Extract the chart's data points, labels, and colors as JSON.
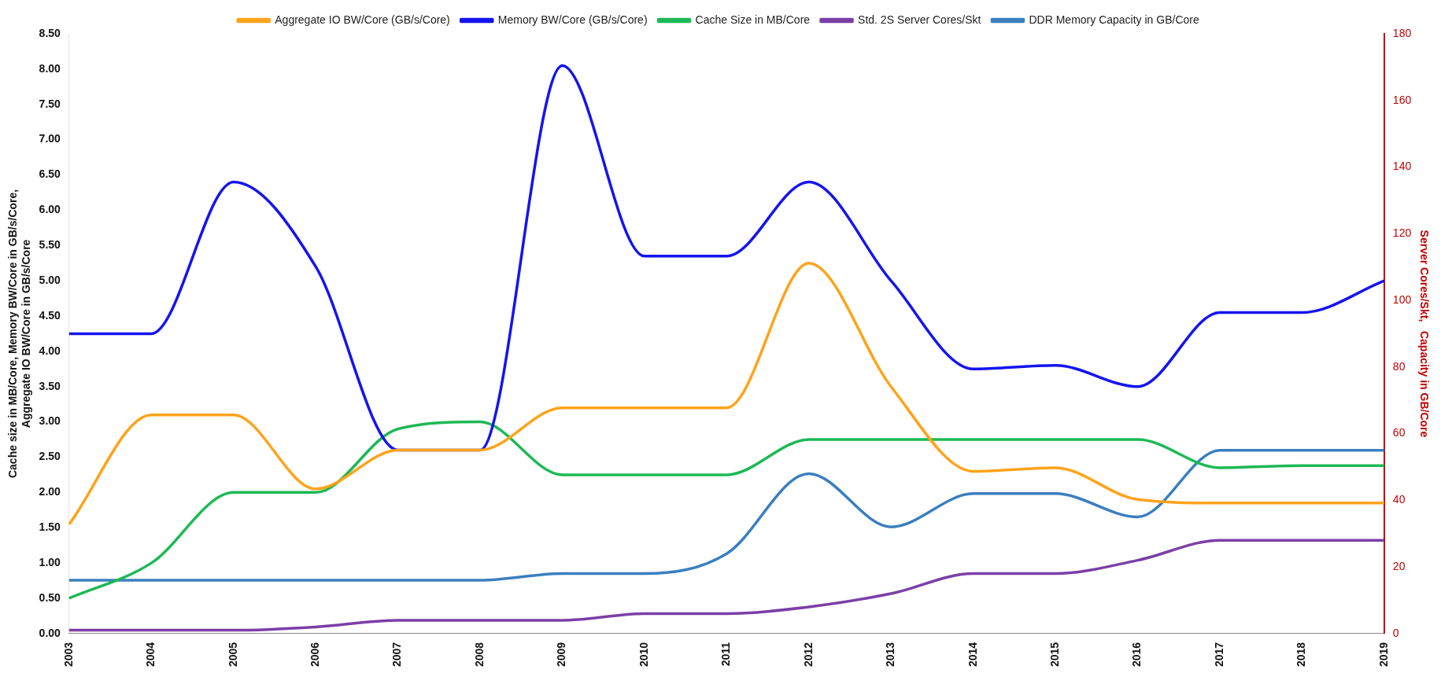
{
  "chart_data": {
    "type": "line",
    "categories": [
      "2003",
      "2004",
      "2005",
      "2006",
      "2007",
      "2008",
      "2009",
      "2010",
      "2011",
      "2012",
      "2013",
      "2014",
      "2015",
      "2016",
      "2017",
      "2018",
      "2019"
    ],
    "ylabel": "Cache size in MB/Core, Memory BW/Core in GB/s/Core,\nAggregate IO BW/Core in GB/s/Core",
    "y2label": "Server Cores/Skt,   Capacity in GB/Core",
    "ylim": [
      0,
      8.5
    ],
    "yticks": [
      {
        "value": 0,
        "label": "0.00"
      },
      {
        "value": 0.5,
        "label": "0.50"
      },
      {
        "value": 1,
        "label": "1.00"
      },
      {
        "value": 1.5,
        "label": "1.50"
      },
      {
        "value": 2,
        "label": "2.00"
      },
      {
        "value": 2.5,
        "label": "2.50"
      },
      {
        "value": 3,
        "label": "3.00"
      },
      {
        "value": 3.5,
        "label": "3.50"
      },
      {
        "value": 4,
        "label": "4.00"
      },
      {
        "value": 4.5,
        "label": "4.50"
      },
      {
        "value": 5,
        "label": "5.00"
      },
      {
        "value": 5.5,
        "label": "5.50"
      },
      {
        "value": 6,
        "label": "6.00"
      },
      {
        "value": 6.5,
        "label": "6.50"
      },
      {
        "value": 7,
        "label": "7.00"
      },
      {
        "value": 7.5,
        "label": "7.50"
      },
      {
        "value": 8,
        "label": "8.00"
      },
      {
        "value": 8.5,
        "label": "8.50"
      }
    ],
    "y2lim": [
      0,
      180
    ],
    "y2ticks": [
      0,
      20,
      40,
      60,
      80,
      100,
      120,
      140,
      160,
      180
    ],
    "grid": false,
    "legend": "top",
    "marker": "none",
    "line_style": "solid",
    "series": [
      {
        "name": "Aggregate IO BW/Core (GB/s/Core)",
        "color": "#ffa31a",
        "values": [
          1.55,
          3.1,
          3.1,
          2.05,
          2.6,
          2.6,
          3.2,
          3.2,
          3.2,
          5.25,
          3.5,
          2.3,
          2.35,
          1.9,
          1.85,
          1.85,
          1.85
        ]
      },
      {
        "name": "Memory BW/Core (GB/s/Core)",
        "color": "#1414f0",
        "values": [
          4.25,
          4.25,
          6.4,
          5.2,
          2.6,
          2.6,
          8.05,
          5.35,
          5.35,
          6.4,
          5.0,
          3.75,
          3.8,
          3.5,
          4.55,
          4.55,
          5.0
        ]
      },
      {
        "name": "Cache Size in MB/Core",
        "color": "#1db954",
        "values": [
          0.5,
          1.0,
          2.0,
          2.0,
          2.9,
          3.0,
          2.25,
          2.25,
          2.25,
          2.75,
          2.75,
          2.75,
          2.75,
          2.75,
          2.35,
          2.38,
          2.38
        ]
      },
      {
        "name": "Std. 2S Server Cores/Skt",
        "color": "#7b3fa6",
        "axis": "y2",
        "values": [
          1,
          1,
          1,
          2,
          4,
          4,
          4,
          6,
          6,
          8,
          12,
          18,
          18,
          22,
          28,
          28,
          28
        ]
      },
      {
        "name": "DDR Memory Capacity in GB/Core",
        "color": "#3a7fc0",
        "axis": "y2",
        "values": [
          16,
          16,
          16,
          16,
          16,
          16,
          18,
          18,
          24,
          48,
          32,
          42,
          42,
          35,
          55,
          55,
          55
        ]
      }
    ]
  }
}
